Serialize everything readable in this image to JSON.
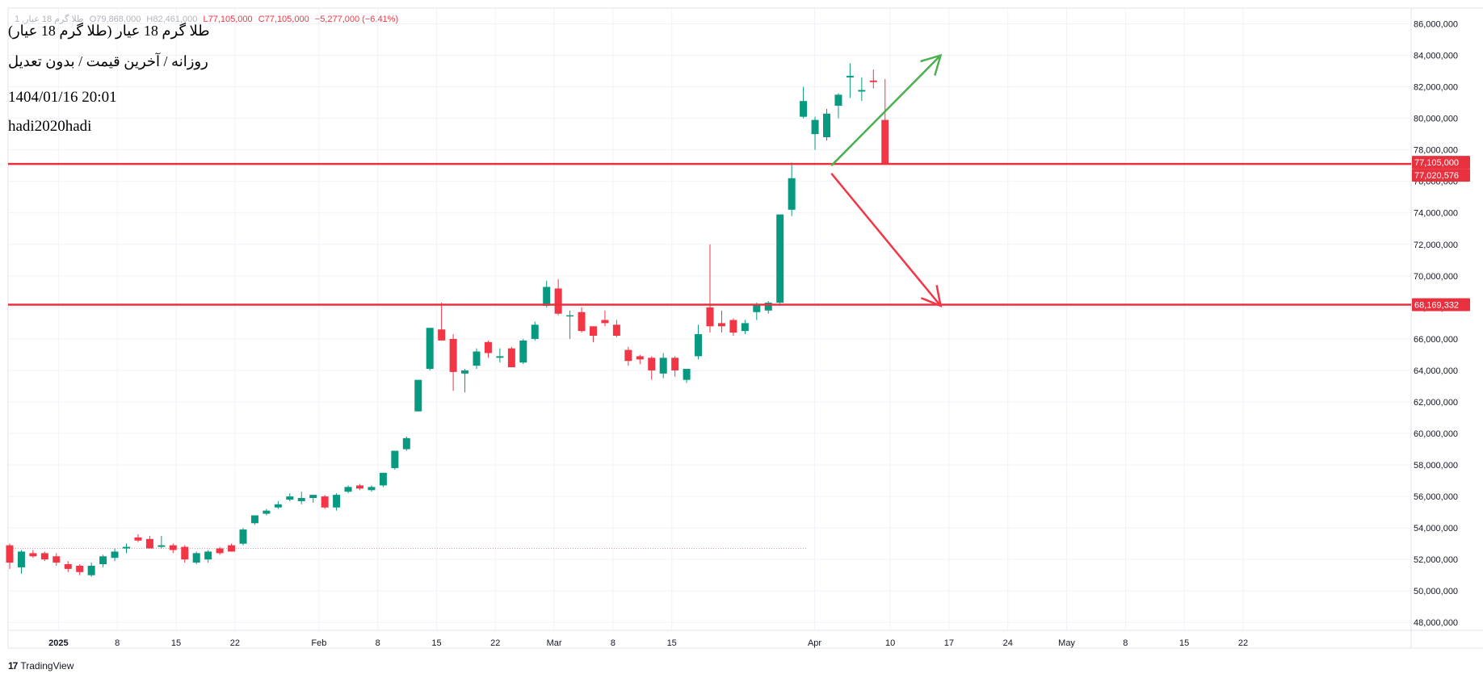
{
  "symbol_line": {
    "symbol": "طلا گرم 18 عیار, 1",
    "open": "O79,868,000",
    "high": "H82,461,000",
    "low": "L77,105,000",
    "close": "C77,105,000",
    "change": "−5,277,000 (−6.41%)"
  },
  "info": {
    "title": "طلا گرم 18 عیار (طلا گرم 18 عیار)",
    "subtitle": "روزانه / آخرین قیمت / بدون تعدیل",
    "datetime": "1404/01/16 20:01",
    "author": "hadi2020hadi"
  },
  "branding": {
    "logo_icon": "tradingview-logo-icon",
    "name": "TradingView"
  },
  "colors": {
    "up": "#089981",
    "down": "#f23645",
    "level_line": "#e8313f",
    "up_arrow": "#4caf50",
    "down_arrow": "#f23645"
  },
  "chart_data": {
    "type": "candlestick",
    "y_unit": "price",
    "ylim": [
      47500000,
      87000000
    ],
    "y_ticks": [
      48000000,
      50000000,
      52000000,
      54000000,
      56000000,
      58000000,
      60000000,
      62000000,
      64000000,
      66000000,
      68000000,
      70000000,
      72000000,
      74000000,
      76000000,
      78000000,
      80000000,
      82000000,
      84000000,
      86000000
    ],
    "y_tick_labels": [
      "48,000,000",
      "50,000,000",
      "52,000,000",
      "54,000,000",
      "56,000,000",
      "58,000,000",
      "60,000,000",
      "62,000,000",
      "64,000,000",
      "66,000,000",
      "68,000,000",
      "70,000,000",
      "72,000,000",
      "74,000,000",
      "76,000,000",
      "78,000,000",
      "80,000,000",
      "82,000,000",
      "84,000,000",
      "86,000,000"
    ],
    "x_range": [
      "2024-12-26",
      "2025-06-11"
    ],
    "x_ticks": [
      {
        "date": "2025-01-01",
        "label": "2025",
        "bold": true
      },
      {
        "date": "2025-01-08",
        "label": "8"
      },
      {
        "date": "2025-01-15",
        "label": "15"
      },
      {
        "date": "2025-01-22",
        "label": "22"
      },
      {
        "date": "2025-02-01",
        "label": "Feb"
      },
      {
        "date": "2025-02-08",
        "label": "8"
      },
      {
        "date": "2025-02-15",
        "label": "15"
      },
      {
        "date": "2025-02-22",
        "label": "22"
      },
      {
        "date": "2025-03-01",
        "label": "Mar"
      },
      {
        "date": "2025-03-08",
        "label": "8"
      },
      {
        "date": "2025-03-15",
        "label": "15"
      },
      {
        "date": "2025-04-01",
        "label": "Apr"
      },
      {
        "date": "2025-04-10",
        "label": "10"
      },
      {
        "date": "2025-04-17",
        "label": "17"
      },
      {
        "date": "2025-04-24",
        "label": "24"
      },
      {
        "date": "2025-05-01",
        "label": "May"
      },
      {
        "date": "2025-05-08",
        "label": "8"
      },
      {
        "date": "2025-05-15",
        "label": "15"
      },
      {
        "date": "2025-05-22",
        "label": "22"
      }
    ],
    "candles": [
      {
        "date": "2024-12-25",
        "o": 52900000,
        "h": 53000000,
        "l": 51400000,
        "c": 51800000
      },
      {
        "date": "2024-12-26",
        "o": 51500000,
        "h": 52600000,
        "l": 51100000,
        "c": 52500000
      },
      {
        "date": "2024-12-27",
        "o": 52400000,
        "h": 52600000,
        "l": 52100000,
        "c": 52200000
      },
      {
        "date": "2024-12-28",
        "o": 52400000,
        "h": 52500000,
        "l": 51900000,
        "c": 52000000
      },
      {
        "date": "2024-12-29",
        "o": 52200000,
        "h": 52400000,
        "l": 51600000,
        "c": 51800000
      },
      {
        "date": "2024-12-30",
        "o": 51700000,
        "h": 51900000,
        "l": 51200000,
        "c": 51400000
      },
      {
        "date": "2024-12-31",
        "o": 51600000,
        "h": 51700000,
        "l": 51000000,
        "c": 51200000
      },
      {
        "date": "2025-01-01",
        "o": 51000000,
        "h": 51800000,
        "l": 50900000,
        "c": 51600000
      },
      {
        "date": "2025-01-02",
        "o": 51700000,
        "h": 52300000,
        "l": 51500000,
        "c": 52200000
      },
      {
        "date": "2025-01-03",
        "o": 52100000,
        "h": 52700000,
        "l": 51900000,
        "c": 52500000
      },
      {
        "date": "2025-01-04",
        "o": 52700000,
        "h": 53000000,
        "l": 52400000,
        "c": 52800000
      },
      {
        "date": "2025-01-05",
        "o": 53400000,
        "h": 53600000,
        "l": 53100000,
        "c": 53200000
      },
      {
        "date": "2025-01-06",
        "o": 53300000,
        "h": 53500000,
        "l": 52700000,
        "c": 52700000
      },
      {
        "date": "2025-01-07",
        "o": 52800000,
        "h": 53500000,
        "l": 52700000,
        "c": 52900000
      },
      {
        "date": "2025-01-08",
        "o": 52900000,
        "h": 53000000,
        "l": 52400000,
        "c": 52600000
      },
      {
        "date": "2025-01-09",
        "o": 52800000,
        "h": 52900000,
        "l": 51800000,
        "c": 52000000
      },
      {
        "date": "2025-01-10",
        "o": 51800000,
        "h": 52500000,
        "l": 51700000,
        "c": 52400000
      },
      {
        "date": "2025-01-11",
        "o": 52000000,
        "h": 52600000,
        "l": 51800000,
        "c": 52500000
      },
      {
        "date": "2025-01-12",
        "o": 52700000,
        "h": 52800000,
        "l": 52300000,
        "c": 52400000
      },
      {
        "date": "2025-01-13",
        "o": 52900000,
        "h": 53000000,
        "l": 52500000,
        "c": 52500000
      },
      {
        "date": "2025-01-14",
        "o": 53000000,
        "h": 54000000,
        "l": 52900000,
        "c": 53900000
      },
      {
        "date": "2025-01-15",
        "o": 54300000,
        "h": 54800000,
        "l": 54200000,
        "c": 54800000
      },
      {
        "date": "2025-01-16",
        "o": 54900000,
        "h": 55200000,
        "l": 54800000,
        "c": 55100000
      },
      {
        "date": "2025-01-17",
        "o": 55300000,
        "h": 55700000,
        "l": 55200000,
        "c": 55500000
      },
      {
        "date": "2025-01-18",
        "o": 55800000,
        "h": 56200000,
        "l": 55700000,
        "c": 56000000
      },
      {
        "date": "2025-01-19",
        "o": 55700000,
        "h": 56300000,
        "l": 55500000,
        "c": 55900000
      },
      {
        "date": "2025-01-20",
        "o": 55900000,
        "h": 56100000,
        "l": 55600000,
        "c": 56100000
      },
      {
        "date": "2025-01-21",
        "o": 56000000,
        "h": 56100000,
        "l": 55200000,
        "c": 55300000
      },
      {
        "date": "2025-01-22",
        "o": 55300000,
        "h": 56200000,
        "l": 55100000,
        "c": 56100000
      },
      {
        "date": "2025-01-23",
        "o": 56300000,
        "h": 56700000,
        "l": 56200000,
        "c": 56600000
      },
      {
        "date": "2025-01-24",
        "o": 56700000,
        "h": 56800000,
        "l": 56400000,
        "c": 56500000
      },
      {
        "date": "2025-01-25",
        "o": 56400000,
        "h": 56700000,
        "l": 56300000,
        "c": 56600000
      },
      {
        "date": "2025-01-26",
        "o": 56700000,
        "h": 57500000,
        "l": 56600000,
        "c": 57500000
      },
      {
        "date": "2025-01-27",
        "o": 57800000,
        "h": 58900000,
        "l": 57700000,
        "c": 58900000
      },
      {
        "date": "2025-01-28",
        "o": 59000000,
        "h": 59800000,
        "l": 58900000,
        "c": 59700000
      },
      {
        "date": "2025-01-29",
        "o": 61400000,
        "h": 63200000,
        "l": 61400000,
        "c": 63400000
      },
      {
        "date": "2025-01-30",
        "o": 64100000,
        "h": 66700000,
        "l": 64000000,
        "c": 66700000
      },
      {
        "date": "2025-01-31",
        "o": 66600000,
        "h": 68300000,
        "l": 65900000,
        "c": 65900000
      },
      {
        "date": "2025-02-01",
        "o": 66000000,
        "h": 66300000,
        "l": 62700000,
        "c": 63900000
      },
      {
        "date": "2025-02-02",
        "o": 63800000,
        "h": 64100000,
        "l": 62600000,
        "c": 64000000
      },
      {
        "date": "2025-02-03",
        "o": 64300000,
        "h": 65400000,
        "l": 64100000,
        "c": 65200000
      },
      {
        "date": "2025-02-04",
        "o": 65800000,
        "h": 65900000,
        "l": 64800000,
        "c": 65100000
      },
      {
        "date": "2025-02-05",
        "o": 64800000,
        "h": 65400000,
        "l": 64500000,
        "c": 64900000
      },
      {
        "date": "2025-02-06",
        "o": 65400000,
        "h": 65500000,
        "l": 64200000,
        "c": 64200000
      },
      {
        "date": "2025-02-07",
        "o": 64500000,
        "h": 66000000,
        "l": 64400000,
        "c": 65900000
      },
      {
        "date": "2025-02-08",
        "o": 66000000,
        "h": 67100000,
        "l": 65900000,
        "c": 66900000
      },
      {
        "date": "2025-02-09",
        "o": 68100000,
        "h": 69700000,
        "l": 68000000,
        "c": 69300000
      },
      {
        "date": "2025-02-10",
        "o": 69200000,
        "h": 69800000,
        "l": 67500000,
        "c": 67600000
      },
      {
        "date": "2025-02-11",
        "o": 67500000,
        "h": 67800000,
        "l": 66000000,
        "c": 67500000
      },
      {
        "date": "2025-02-12",
        "o": 67700000,
        "h": 68000000,
        "l": 66400000,
        "c": 66500000
      },
      {
        "date": "2025-02-13",
        "o": 66800000,
        "h": 66800000,
        "l": 65800000,
        "c": 66200000
      },
      {
        "date": "2025-02-14",
        "o": 67200000,
        "h": 67800000,
        "l": 66800000,
        "c": 67000000
      },
      {
        "date": "2025-02-15",
        "o": 66900000,
        "h": 67200000,
        "l": 66100000,
        "c": 66200000
      },
      {
        "date": "2025-02-16",
        "o": 65300000,
        "h": 65500000,
        "l": 64300000,
        "c": 64600000
      },
      {
        "date": "2025-02-17",
        "o": 64900000,
        "h": 65000000,
        "l": 64400000,
        "c": 64700000
      },
      {
        "date": "2025-02-18",
        "o": 64800000,
        "h": 64900000,
        "l": 63400000,
        "c": 64000000
      },
      {
        "date": "2025-02-19",
        "o": 63800000,
        "h": 65100000,
        "l": 63500000,
        "c": 64800000
      },
      {
        "date": "2025-02-20",
        "o": 64800000,
        "h": 64900000,
        "l": 63600000,
        "c": 64000000
      },
      {
        "date": "2025-02-21",
        "o": 63400000,
        "h": 64100000,
        "l": 63200000,
        "c": 64100000
      },
      {
        "date": "2025-02-22",
        "o": 64900000,
        "h": 66900000,
        "l": 64700000,
        "c": 66300000
      },
      {
        "date": "2025-02-23",
        "o": 68000000,
        "h": 72000000,
        "l": 66400000,
        "c": 66800000
      },
      {
        "date": "2025-02-24",
        "o": 67000000,
        "h": 67800000,
        "l": 66400000,
        "c": 66800000
      },
      {
        "date": "2025-02-25",
        "o": 67200000,
        "h": 67300000,
        "l": 66200000,
        "c": 66400000
      },
      {
        "date": "2025-02-26",
        "o": 66500000,
        "h": 67200000,
        "l": 66300000,
        "c": 67000000
      },
      {
        "date": "2025-02-27",
        "o": 67700000,
        "h": 68300000,
        "l": 67200000,
        "c": 68200000
      },
      {
        "date": "2025-02-28",
        "o": 67800000,
        "h": 68400000,
        "l": 67600000,
        "c": 68300000
      },
      {
        "date": "2025-03-01",
        "o": 68300000,
        "h": 73900000,
        "l": 68200000,
        "c": 73900000
      },
      {
        "date": "2025-03-02",
        "o": 74200000,
        "h": 77200000,
        "l": 73800000,
        "c": 76200000
      },
      {
        "date": "2025-03-03",
        "o": 80100000,
        "h": 82000000,
        "l": 80000000,
        "c": 81100000
      },
      {
        "date": "2025-03-04",
        "o": 79000000,
        "h": 80100000,
        "l": 78000000,
        "c": 79900000
      },
      {
        "date": "2025-03-05",
        "o": 78800000,
        "h": 80600000,
        "l": 78600000,
        "c": 80300000
      },
      {
        "date": "2025-03-06",
        "o": 80800000,
        "h": 81600000,
        "l": 80000000,
        "c": 81500000
      },
      {
        "date": "2025-03-07",
        "o": 82600000,
        "h": 83500000,
        "l": 81300000,
        "c": 82700000
      },
      {
        "date": "2025-03-08",
        "o": 81700000,
        "h": 82600000,
        "l": 81100000,
        "c": 81800000
      },
      {
        "date": "2025-03-09",
        "o": 82400000,
        "h": 83100000,
        "l": 81900000,
        "c": 82300000
      },
      {
        "date": "2025-03-10",
        "o": 79900000,
        "h": 82500000,
        "l": 77100000,
        "c": 77100000
      }
    ],
    "levels": [
      {
        "price": 77105000,
        "label": "77,105,000"
      },
      {
        "price": 77020576,
        "label": "77,020,576"
      },
      {
        "price": 68169332,
        "label": "68,169,332"
      }
    ],
    "arrows": [
      {
        "direction": "up",
        "from": {
          "date": "2025-04-03",
          "price": 77000000
        },
        "to": {
          "date": "2025-04-16",
          "price": 84000000
        }
      },
      {
        "direction": "down",
        "from": {
          "date": "2025-04-03",
          "price": 76500000
        },
        "to": {
          "date": "2025-04-16",
          "price": 68100000
        }
      }
    ],
    "dotted_line": {
      "price": 52700000,
      "from_date": "2024-12-26",
      "to_date": "2025-03-31"
    }
  }
}
